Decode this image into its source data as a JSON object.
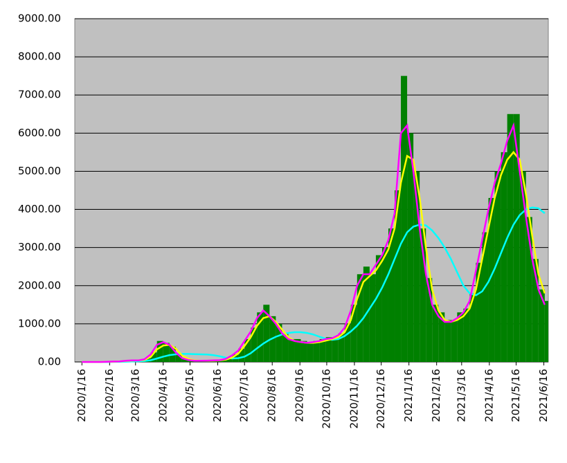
{
  "chart_data": {
    "type": "bar",
    "x": [
      "2020/1/16",
      "2020/1/23",
      "2020/1/30",
      "2020/2/6",
      "2020/2/13",
      "2020/2/20",
      "2020/2/27",
      "2020/3/5",
      "2020/3/12",
      "2020/3/19",
      "2020/3/26",
      "2020/4/2",
      "2020/4/9",
      "2020/4/16",
      "2020/4/23",
      "2020/4/30",
      "2020/5/7",
      "2020/5/14",
      "2020/5/21",
      "2020/5/28",
      "2020/6/4",
      "2020/6/11",
      "2020/6/18",
      "2020/6/25",
      "2020/7/2",
      "2020/7/9",
      "2020/7/16",
      "2020/7/23",
      "2020/7/30",
      "2020/8/6",
      "2020/8/13",
      "2020/8/20",
      "2020/8/27",
      "2020/9/3",
      "2020/9/10",
      "2020/9/17",
      "2020/9/24",
      "2020/10/1",
      "2020/10/8",
      "2020/10/15",
      "2020/10/22",
      "2020/10/29",
      "2020/11/5",
      "2020/11/12",
      "2020/11/19",
      "2020/11/26",
      "2020/12/3",
      "2020/12/10",
      "2020/12/17",
      "2020/12/24",
      "2020/12/31",
      "2021/1/7",
      "2021/1/14",
      "2021/1/21",
      "2021/1/28",
      "2021/2/4",
      "2021/2/11",
      "2021/2/18",
      "2021/2/25",
      "2021/3/4",
      "2021/3/11",
      "2021/3/18",
      "2021/3/25",
      "2021/4/1",
      "2021/4/8",
      "2021/4/15",
      "2021/4/22",
      "2021/4/29",
      "2021/5/6",
      "2021/5/13",
      "2021/5/20",
      "2021/5/27",
      "2021/6/3",
      "2021/6/10",
      "2021/6/17"
    ],
    "series": [
      {
        "type": "bar",
        "color": "#008000",
        "values": [
          0,
          0,
          0,
          0,
          5,
          10,
          20,
          40,
          50,
          40,
          100,
          250,
          550,
          500,
          400,
          200,
          80,
          50,
          30,
          40,
          40,
          40,
          50,
          100,
          200,
          350,
          600,
          900,
          1300,
          1500,
          1200,
          1000,
          750,
          600,
          600,
          550,
          500,
          550,
          600,
          650,
          650,
          750,
          1000,
          1500,
          2300,
          2500,
          2300,
          2800,
          3000,
          3500,
          4500,
          7500,
          6000,
          5000,
          3500,
          2200,
          1500,
          1300,
          1100,
          1100,
          1300,
          1400,
          1800,
          2600,
          3400,
          4300,
          5000,
          5500,
          6500,
          6500,
          5000,
          3800,
          2700,
          1900,
          1600
        ]
      },
      {
        "type": "line",
        "color": "#00ffff",
        "values": [
          0,
          0,
          0,
          0,
          0,
          2,
          5,
          8,
          12,
          18,
          25,
          45,
          90,
          140,
          180,
          200,
          210,
          210,
          205,
          200,
          195,
          180,
          150,
          110,
          90,
          100,
          140,
          230,
          360,
          480,
          580,
          660,
          720,
          760,
          780,
          780,
          760,
          720,
          660,
          610,
          580,
          600,
          680,
          800,
          950,
          1150,
          1400,
          1650,
          1950,
          2300,
          2700,
          3100,
          3400,
          3550,
          3600,
          3580,
          3450,
          3250,
          3000,
          2700,
          2350,
          2000,
          1800,
          1750,
          1850,
          2100,
          2450,
          2850,
          3250,
          3600,
          3850,
          4000,
          4050,
          4030,
          3900
        ]
      },
      {
        "type": "line",
        "color": "#ffff00",
        "values": [
          0,
          0,
          0,
          0,
          3,
          8,
          12,
          25,
          35,
          40,
          55,
          130,
          330,
          430,
          450,
          350,
          170,
          80,
          40,
          30,
          30,
          35,
          40,
          60,
          110,
          220,
          420,
          650,
          950,
          1150,
          1200,
          1050,
          850,
          650,
          550,
          520,
          500,
          500,
          520,
          560,
          600,
          650,
          780,
          1100,
          1650,
          2100,
          2250,
          2400,
          2650,
          2950,
          3500,
          4700,
          5400,
          5300,
          4300,
          3000,
          1900,
          1350,
          1100,
          1050,
          1100,
          1200,
          1400,
          1900,
          2700,
          3500,
          4300,
          4900,
          5300,
          5500,
          5300,
          4400,
          3300,
          2300,
          1800
        ]
      },
      {
        "type": "line",
        "color": "#ff00ff",
        "values": [
          0,
          0,
          0,
          0,
          5,
          10,
          15,
          30,
          40,
          40,
          70,
          200,
          450,
          520,
          450,
          250,
          100,
          50,
          30,
          30,
          35,
          40,
          45,
          80,
          170,
          300,
          550,
          800,
          1150,
          1350,
          1200,
          1000,
          750,
          600,
          550,
          520,
          500,
          520,
          550,
          600,
          620,
          700,
          900,
          1350,
          2000,
          2300,
          2300,
          2550,
          2800,
          3200,
          3900,
          6000,
          6200,
          5000,
          3500,
          2300,
          1500,
          1200,
          1050,
          1050,
          1150,
          1300,
          1600,
          2400,
          3200,
          4000,
          4700,
          5200,
          5800,
          6200,
          5000,
          3800,
          2700,
          1900,
          1500
        ]
      }
    ],
    "xlim": [
      "2020/1/8",
      "2021/6/21"
    ],
    "xticks": [
      "2020/1/16",
      "2020/2/16",
      "2020/3/16",
      "2020/4/16",
      "2020/5/16",
      "2020/6/16",
      "2020/7/16",
      "2020/8/16",
      "2020/9/16",
      "2020/10/16",
      "2020/11/16",
      "2020/12/16",
      "2021/1/16",
      "2021/2/16",
      "2021/3/16",
      "2021/4/16",
      "2021/5/16",
      "2021/6/16"
    ],
    "ylim": [
      0,
      9000
    ],
    "yticks": [
      {
        "value": 0,
        "label": "0.00"
      },
      {
        "value": 1000,
        "label": "1000.00"
      },
      {
        "value": 2000,
        "label": "2000.00"
      },
      {
        "value": 3000,
        "label": "3000.00"
      },
      {
        "value": 4000,
        "label": "4000.00"
      },
      {
        "value": 5000,
        "label": "5000.00"
      },
      {
        "value": 6000,
        "label": "6000.00"
      },
      {
        "value": 7000,
        "label": "7000.00"
      },
      {
        "value": 8000,
        "label": "8000.00"
      },
      {
        "value": 9000,
        "label": "9000.00"
      }
    ],
    "grid": true,
    "plot_color": "#c0c0c0"
  }
}
